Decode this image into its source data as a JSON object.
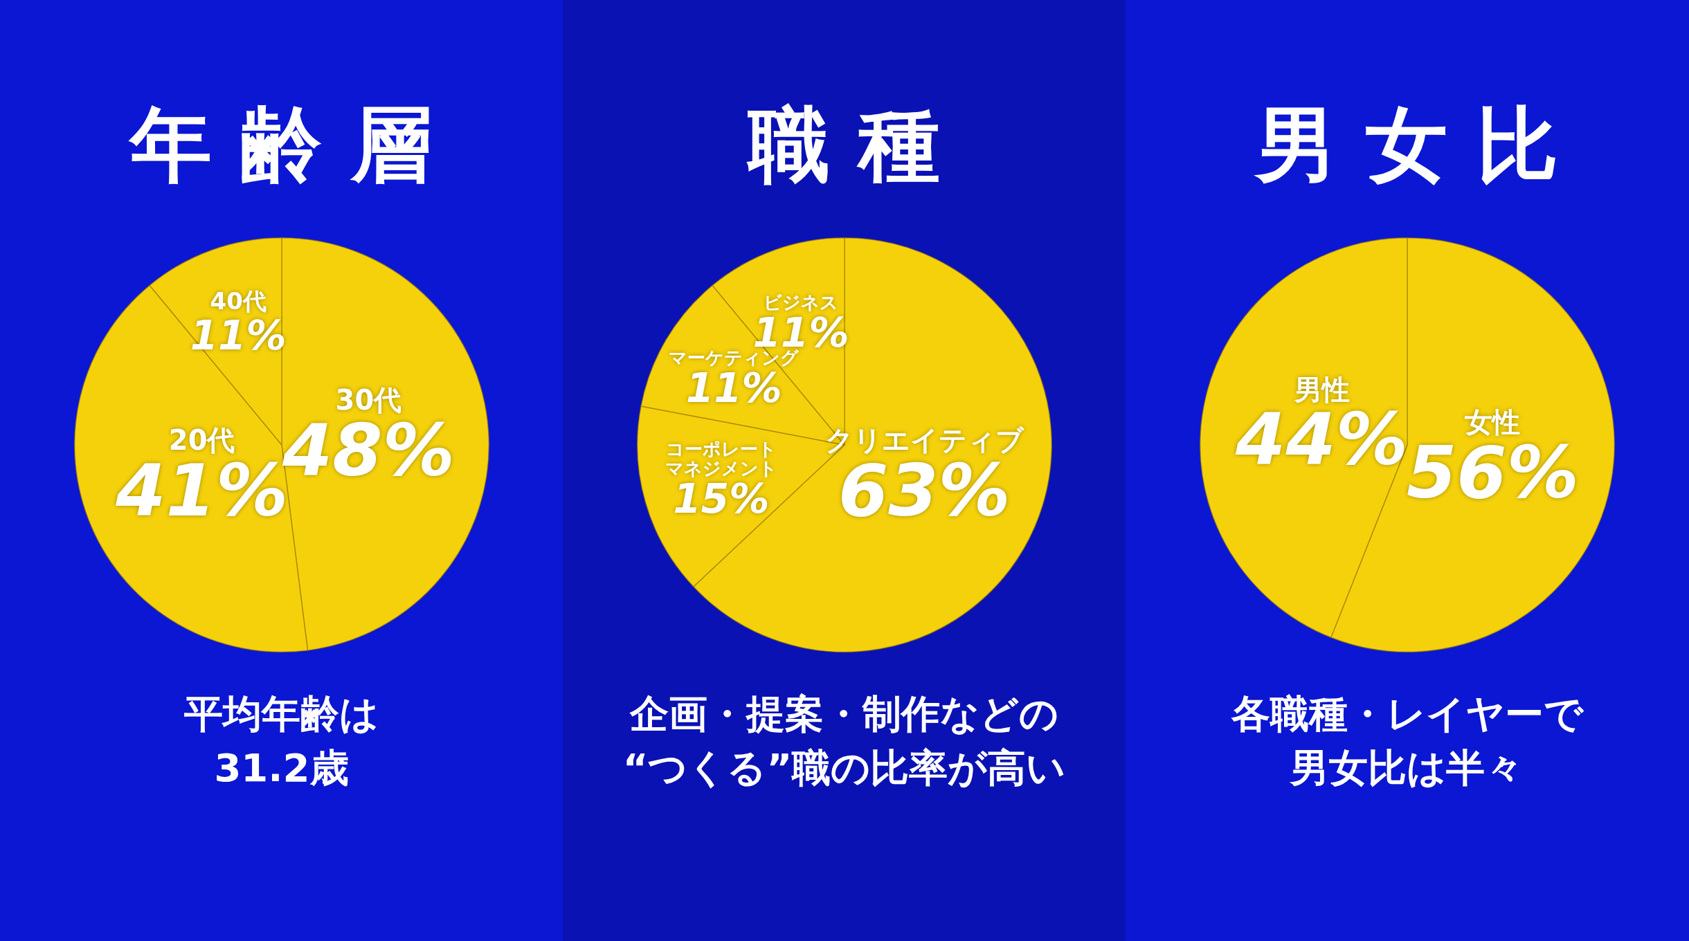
{
  "chart_data": [
    {
      "type": "pie",
      "title": "年齢層",
      "categories": [
        "30代",
        "20代",
        "40代"
      ],
      "values": [
        48,
        41,
        11
      ],
      "value_labels": [
        "48%",
        "41%",
        "11%"
      ],
      "colors": [
        "#f5d10c",
        "#f5d10c",
        "#f5d10c"
      ],
      "legend": false,
      "annotations": [
        "平均年齢は",
        "31.2歳"
      ]
    },
    {
      "type": "pie",
      "title": "職種",
      "categories": [
        "クリエイティブ",
        "コーポレートマネジメント",
        "マーケティング",
        "ビジネス"
      ],
      "values": [
        63,
        15,
        11,
        11
      ],
      "value_labels": [
        "63%",
        "15%",
        "11%",
        "11%"
      ],
      "colors": [
        "#f5d10c",
        "#f5d10c",
        "#f5d10c",
        "#f5d10c"
      ],
      "legend": false,
      "annotations": [
        "企画・提案・制作などの",
        "“つくる”職の比率が高い"
      ]
    },
    {
      "type": "pie",
      "title": "男女比",
      "categories": [
        "女性",
        "男性"
      ],
      "values": [
        56,
        44
      ],
      "value_labels": [
        "56%",
        "44%"
      ],
      "colors": [
        "#f5d10c",
        "#f5d10c"
      ],
      "legend": false,
      "annotations": [
        "各職種・レイヤーで",
        "男女比は半々"
      ]
    }
  ]
}
